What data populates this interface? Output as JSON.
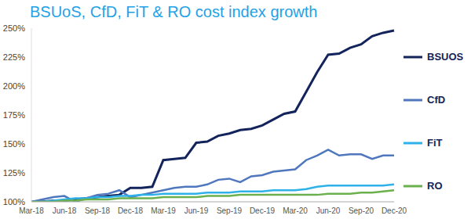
{
  "chart_data": {
    "type": "line",
    "title": "BSUoS, CfD, FiT & RO cost index growth",
    "categories": [
      "Mar-18",
      null,
      null,
      "Jun-18",
      null,
      null,
      "Sep-18",
      null,
      null,
      "Dec-18",
      null,
      null,
      "Mar-19",
      null,
      null,
      "Jun-19",
      null,
      null,
      "Sep-19",
      null,
      null,
      "Dec-19",
      null,
      null,
      "Mar-20",
      null,
      null,
      "Jun-20",
      null,
      null,
      "Sep-20",
      null,
      null,
      "Dec-20"
    ],
    "series": [
      {
        "name": "BSUOS",
        "color": "#13235b",
        "values": [
          100,
          100,
          101,
          101,
          102,
          103,
          104,
          105,
          106,
          112,
          112,
          113,
          136,
          137,
          138,
          151,
          152,
          157,
          159,
          162,
          163,
          166,
          171,
          176,
          178,
          195,
          212,
          227,
          228,
          233,
          236,
          243,
          246,
          248
        ]
      },
      {
        "name": "CfD",
        "color": "#4f77be",
        "values": [
          100,
          102,
          104,
          105,
          100,
          103,
          106,
          107,
          110,
          104,
          106,
          108,
          110,
          112,
          113,
          113,
          115,
          119,
          120,
          117,
          122,
          123,
          126,
          127,
          128,
          136,
          140,
          145,
          140,
          141,
          141,
          137,
          140,
          140
        ]
      },
      {
        "name": "FiT",
        "color": "#2eb1e8",
        "values": [
          100,
          100,
          101,
          102,
          103,
          103,
          104,
          104,
          105,
          105,
          106,
          106,
          107,
          107,
          107,
          107,
          108,
          108,
          108,
          109,
          109,
          109,
          110,
          110,
          110,
          111,
          113,
          114,
          114,
          114,
          114,
          114,
          114,
          115
        ]
      },
      {
        "name": "RO",
        "color": "#6ab04c",
        "values": [
          100,
          100,
          100,
          101,
          101,
          102,
          102,
          102,
          103,
          103,
          103,
          103,
          104,
          104,
          104,
          104,
          105,
          105,
          105,
          106,
          106,
          106,
          106,
          106,
          106,
          106,
          106,
          107,
          107,
          107,
          108,
          108,
          109,
          110
        ]
      }
    ],
    "ylim": [
      100,
      250
    ],
    "yticks": [
      {
        "value": 100,
        "label": "100%"
      },
      {
        "value": 125,
        "label": "125%"
      },
      {
        "value": 150,
        "label": "150%"
      },
      {
        "value": 175,
        "label": "175%"
      },
      {
        "value": 200,
        "label": "200%"
      },
      {
        "value": 225,
        "label": "225%"
      },
      {
        "value": 250,
        "label": "250%"
      }
    ],
    "grid": false,
    "legend": "right"
  }
}
